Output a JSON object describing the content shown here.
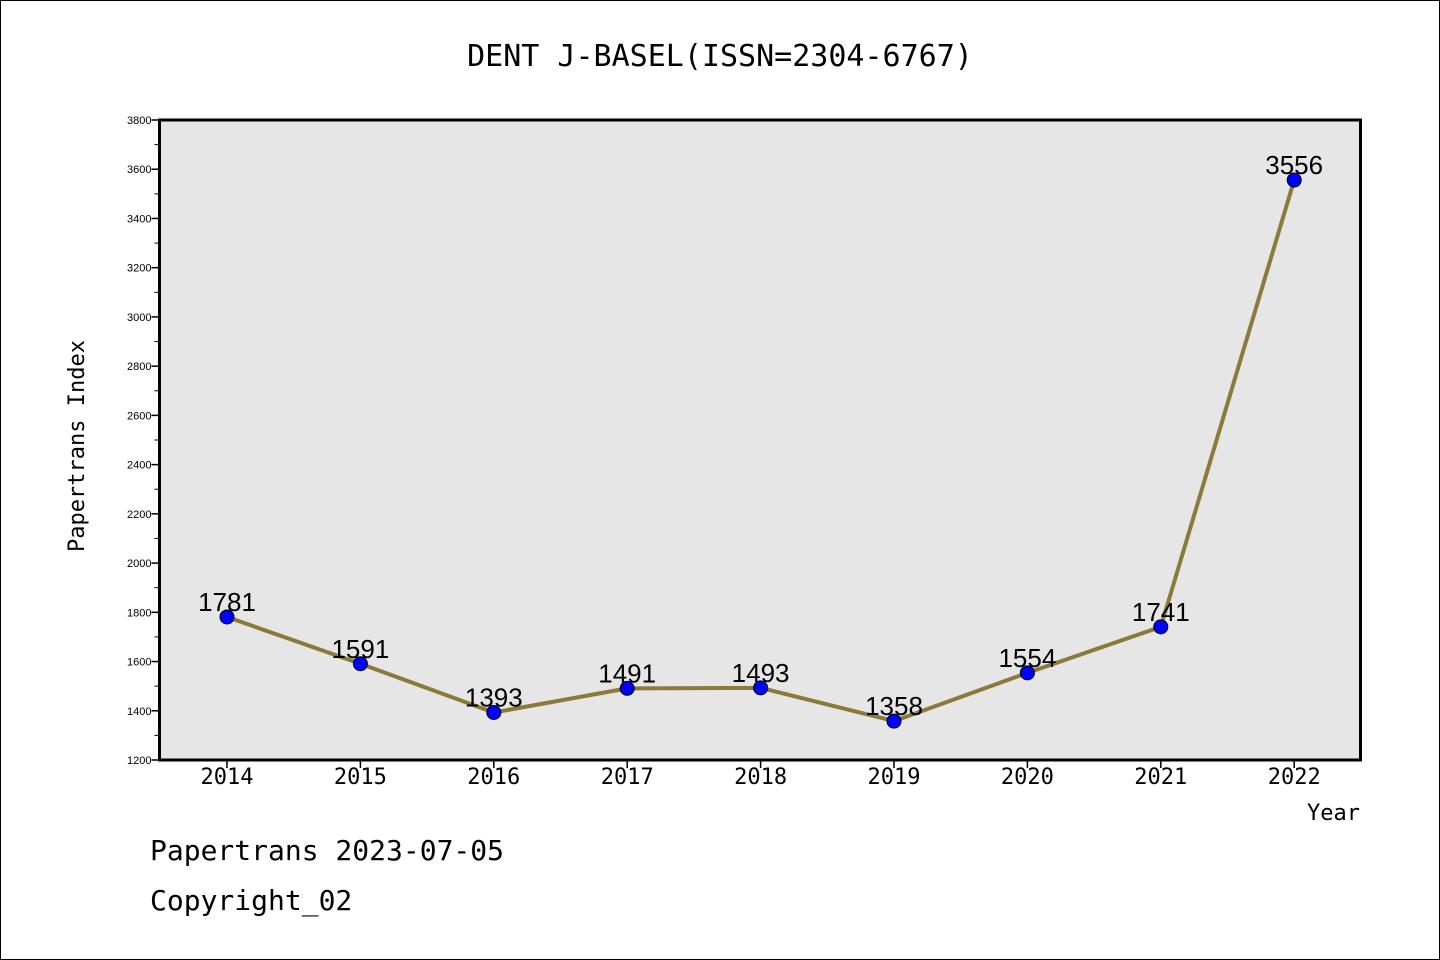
{
  "footer": {
    "line1": "Papertrans 2023-07-05",
    "line2": "Copyright_02"
  },
  "chart_data": {
    "type": "line",
    "title": "DENT J-BASEL(ISSN=2304-6767)",
    "xlabel": "Year",
    "ylabel": "Papertrans Index",
    "categories": [
      "2014",
      "2015",
      "2016",
      "2017",
      "2018",
      "2019",
      "2020",
      "2021",
      "2022"
    ],
    "series": [
      {
        "values": [
          1781,
          1591,
          1393,
          1491,
          1493,
          1358,
          1554,
          1741,
          3556
        ],
        "line_color": "#8b7a3a",
        "marker_color": "#0000ff"
      }
    ],
    "data_labels": [
      "1781",
      "1591",
      "1393",
      "1491",
      "1493",
      "1358",
      "1554",
      "1741",
      "3556"
    ],
    "ylim": [
      1200,
      3800
    ],
    "yticks": [
      1200,
      1400,
      1600,
      1800,
      2000,
      2200,
      2400,
      2600,
      2800,
      3000,
      3200,
      3400,
      3600,
      3800
    ],
    "ytick_labels": [
      "1200",
      "1400",
      "1600",
      "1800",
      "2000",
      "2200",
      "2400",
      "2600",
      "2800",
      "3000",
      "3200",
      "3400",
      "3600",
      "3800"
    ],
    "plot_background": "#e6e6e6",
    "grid": false,
    "legend": "none"
  }
}
